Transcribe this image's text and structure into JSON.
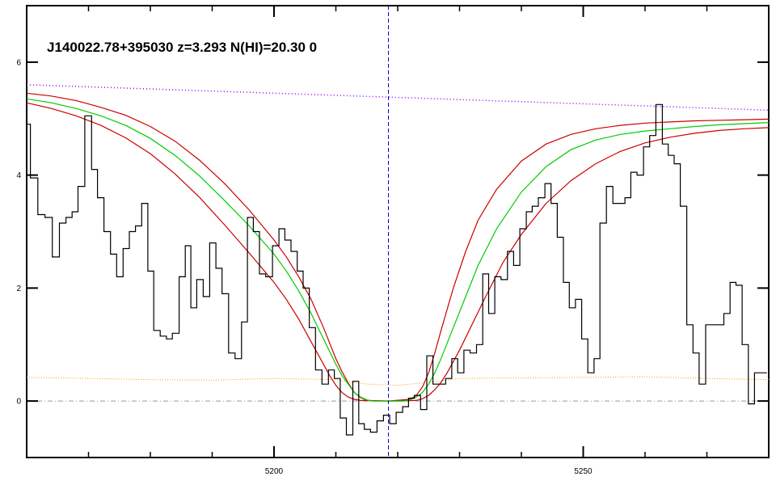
{
  "chart_data": {
    "type": "line",
    "title": "J140022.78+395030 z=3.293 N(HI)=20.30 0",
    "xlabel": "",
    "ylabel": "",
    "xlim": [
      5160,
      5280
    ],
    "ylim": [
      -1,
      7
    ],
    "x_ticks": [
      5200,
      5250
    ],
    "y_ticks": [
      0,
      2,
      4,
      6
    ],
    "grid": false,
    "legend": "none",
    "colors": {
      "flux": "#000000",
      "model": "#00cc00",
      "model_bounds": "#cc0000",
      "continuum": "#8800ff",
      "error": "#ff9900",
      "zero_line": "#999999",
      "center_line": "#0000cc"
    },
    "line_center": 5218.5,
    "flux": {
      "x": [
        5160,
        5161.2,
        5162.4,
        5163.5,
        5164.8,
        5165.8,
        5166.9,
        5167.8,
        5168.8,
        5170,
        5171,
        5171.9,
        5173.1,
        5174,
        5175.1,
        5176.1,
        5177.1,
        5178.1,
        5179.1,
        5180.1,
        5181,
        5182.2,
        5183,
        5184.1,
        5185.2,
        5186.1,
        5187,
        5188,
        5189.1,
        5190.1,
        5191.1,
        5192.1,
        5193.2,
        5194.2,
        5195.3,
        5196.1,
        5197.2,
        5198.1,
        5199.2,
        5200.3,
        5201.3,
        5202.2,
        5203.3,
        5204.2,
        5205.2,
        5206.2,
        5207.2,
        5208.3,
        5209.3,
        5210.2,
        5211.2,
        5212.2,
        5213.3,
        5214.1,
        5215.1,
        5216.1,
        5217.2,
        5218.2,
        5219.2,
        5220.3,
        5221.3,
        5222.2,
        5223.2,
        5224.2,
        5225.2,
        5226.2,
        5227.2,
        5228.3,
        5229.2,
        5230.2,
        5231.2,
        5232.2,
        5233.3,
        5234.2,
        5235.2,
        5236.2,
        5237.2,
        5238.3,
        5239.2,
        5240.3,
        5241.3,
        5242.2,
        5243.3,
        5244.3,
        5245.3,
        5246.3,
        5247.3,
        5248.2,
        5249.3,
        5250.2,
        5251.3,
        5252.2,
        5253.2,
        5254.3,
        5255.3,
        5256.3,
        5257.2,
        5258.2,
        5259.2,
        5260.3,
        5261.2,
        5262.3,
        5263.3,
        5264.2,
        5265.2,
        5266.2,
        5267.3,
        5268.2,
        5269.3,
        5270.3,
        5271.2,
        5272.2,
        5273.3,
        5274.2,
        5275.2,
        5276.2,
        5277.2,
        5278.2,
        5279.2
      ],
      "y": [
        4.9,
        3.95,
        3.3,
        3.25,
        2.55,
        3.15,
        3.25,
        3.35,
        3.8,
        5.05,
        4.1,
        3.6,
        3.0,
        2.6,
        2.2,
        2.7,
        3.0,
        3.1,
        3.5,
        2.3,
        1.25,
        1.15,
        1.1,
        1.2,
        2.2,
        2.75,
        1.65,
        2.15,
        1.85,
        2.8,
        2.35,
        1.9,
        0.85,
        0.75,
        1.4,
        3.25,
        3.0,
        2.25,
        2.2,
        2.75,
        3.05,
        2.85,
        2.65,
        2.3,
        2.0,
        1.3,
        0.55,
        0.3,
        0.55,
        0.4,
        -0.3,
        -0.6,
        0.35,
        -0.4,
        -0.5,
        -0.55,
        -0.35,
        -0.25,
        -0.4,
        -0.2,
        -0.1,
        0.05,
        0.1,
        -0.15,
        0.8,
        0.3,
        0.3,
        0.4,
        0.75,
        0.5,
        0.9,
        0.85,
        1.0,
        2.25,
        1.55,
        2.2,
        2.15,
        2.65,
        2.4,
        3.05,
        3.35,
        3.45,
        3.6,
        3.85,
        3.5,
        2.9,
        2.1,
        1.65,
        1.8,
        1.1,
        0.5,
        0.75,
        3.15,
        3.8,
        3.5,
        3.5,
        3.6,
        4.05,
        4.0,
        4.5,
        4.7,
        5.25,
        4.55,
        4.35,
        4.2,
        3.45,
        1.35,
        0.85,
        0.3,
        1.35,
        1.35,
        1.35,
        1.55,
        2.1,
        2.05,
        1.0,
        -0.05,
        0.5,
        0.5
      ]
    },
    "model": {
      "x": [
        5160,
        5164,
        5168,
        5172,
        5176,
        5180,
        5184,
        5188,
        5192,
        5196,
        5200,
        5202,
        5204,
        5206,
        5208,
        5210,
        5211,
        5212,
        5213,
        5214,
        5215,
        5216,
        5218.5,
        5221,
        5222,
        5223,
        5224,
        5225,
        5226,
        5227,
        5229,
        5231,
        5233,
        5236,
        5240,
        5244,
        5248,
        5252,
        5256,
        5260,
        5264,
        5268,
        5272,
        5276,
        5280
      ],
      "y": [
        5.35,
        5.28,
        5.18,
        5.05,
        4.88,
        4.65,
        4.35,
        3.98,
        3.55,
        3.1,
        2.6,
        2.3,
        1.95,
        1.55,
        1.1,
        0.65,
        0.45,
        0.3,
        0.15,
        0.07,
        0.02,
        0.0,
        0.0,
        0.0,
        0.02,
        0.07,
        0.15,
        0.3,
        0.5,
        0.75,
        1.3,
        1.85,
        2.4,
        3.05,
        3.7,
        4.15,
        4.45,
        4.62,
        4.72,
        4.78,
        4.82,
        4.86,
        4.89,
        4.91,
        4.93
      ]
    },
    "model_upper": {
      "x": [
        5160,
        5164,
        5168,
        5172,
        5176,
        5180,
        5184,
        5188,
        5192,
        5196,
        5200,
        5202,
        5204,
        5206,
        5208,
        5210,
        5211,
        5212,
        5213,
        5214,
        5215,
        5218.5,
        5222,
        5223,
        5224,
        5225,
        5226,
        5227,
        5229,
        5231,
        5233,
        5236,
        5240,
        5244,
        5248,
        5252,
        5256,
        5260,
        5264,
        5268,
        5272,
        5276,
        5280
      ],
      "y": [
        5.45,
        5.4,
        5.32,
        5.2,
        5.06,
        4.86,
        4.6,
        4.26,
        3.85,
        3.38,
        2.85,
        2.55,
        2.2,
        1.8,
        1.3,
        0.75,
        0.52,
        0.32,
        0.15,
        0.06,
        0.01,
        0.0,
        0.03,
        0.1,
        0.25,
        0.5,
        0.85,
        1.25,
        2.0,
        2.65,
        3.2,
        3.75,
        4.25,
        4.55,
        4.72,
        4.82,
        4.88,
        4.92,
        4.94,
        4.96,
        4.97,
        4.98,
        4.99
      ]
    },
    "model_lower": {
      "x": [
        5160,
        5164,
        5168,
        5172,
        5176,
        5180,
        5184,
        5188,
        5192,
        5196,
        5200,
        5202,
        5204,
        5206,
        5208,
        5209,
        5210,
        5211,
        5212,
        5213,
        5214,
        5218.5,
        5223,
        5224,
        5225,
        5226,
        5227,
        5228,
        5230,
        5232,
        5234,
        5237,
        5240,
        5244,
        5248,
        5252,
        5256,
        5260,
        5264,
        5268,
        5272,
        5276,
        5280
      ],
      "y": [
        5.28,
        5.18,
        5.05,
        4.88,
        4.66,
        4.38,
        4.02,
        3.6,
        3.12,
        2.62,
        2.1,
        1.8,
        1.45,
        1.05,
        0.65,
        0.45,
        0.28,
        0.15,
        0.07,
        0.03,
        0.01,
        0.0,
        0.01,
        0.04,
        0.1,
        0.2,
        0.33,
        0.5,
        0.9,
        1.35,
        1.8,
        2.45,
        2.95,
        3.5,
        3.9,
        4.2,
        4.42,
        4.57,
        4.67,
        4.74,
        4.79,
        4.82,
        4.84
      ]
    },
    "continuum": {
      "x": [
        5160,
        5280
      ],
      "y": [
        5.6,
        5.15
      ]
    },
    "error": {
      "x": [
        5160,
        5170,
        5180,
        5190,
        5200,
        5210,
        5215,
        5220,
        5225,
        5230,
        5240,
        5250,
        5260,
        5270,
        5280
      ],
      "y": [
        0.42,
        0.4,
        0.38,
        0.37,
        0.4,
        0.38,
        0.3,
        0.28,
        0.33,
        0.4,
        0.41,
        0.42,
        0.43,
        0.4,
        0.38
      ]
    }
  }
}
